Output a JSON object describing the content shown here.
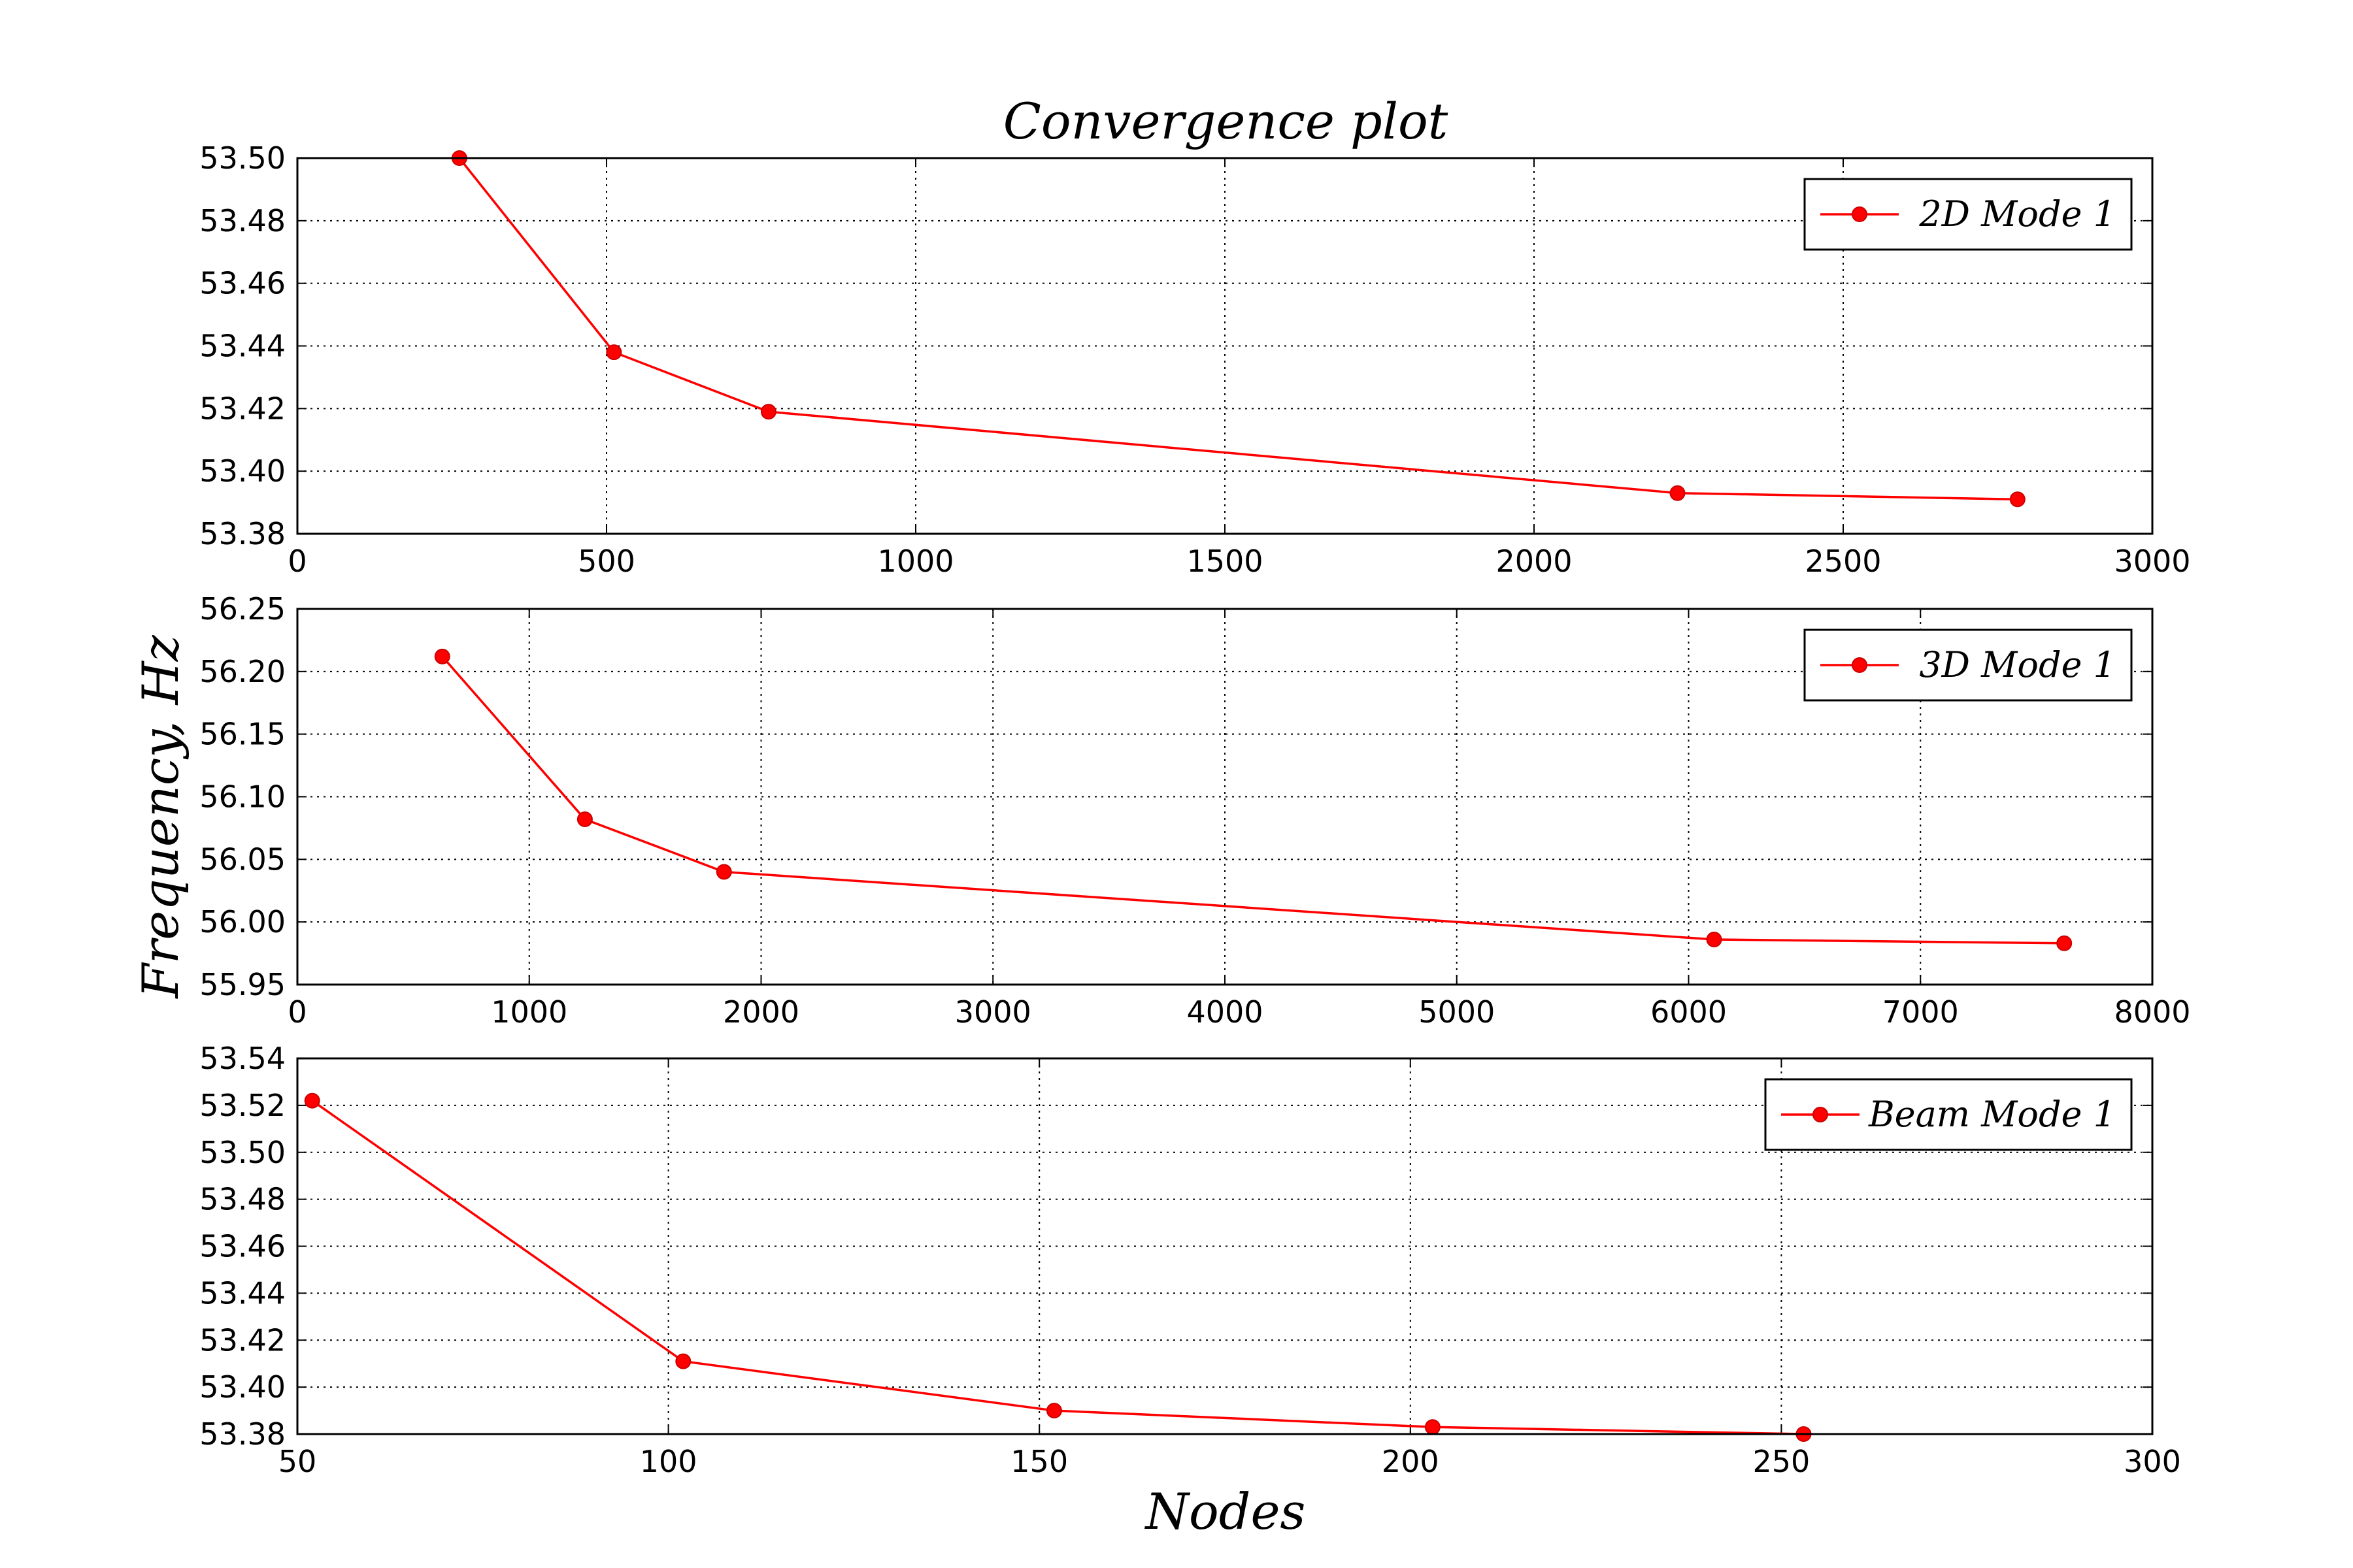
{
  "chart_data": {
    "title": "Convergence plot",
    "xlabel": "Nodes",
    "ylabel": "Frequency, Hz",
    "line_color": "#ff0000",
    "grid": true,
    "legend_position": "top-right",
    "panels": [
      {
        "type": "line",
        "series": [
          {
            "name": "2D Mode 1",
            "x": [
              262,
              512,
              762,
              2232,
              2782
            ],
            "y": [
              53.5,
              53.438,
              53.419,
              53.393,
              53.391
            ]
          }
        ],
        "xlim": [
          0,
          3000
        ],
        "ylim": [
          53.38,
          53.5
        ],
        "xticks": [
          0,
          500,
          1000,
          1500,
          2000,
          2500,
          3000
        ],
        "xtick_labels": [
          "0",
          "500",
          "1000",
          "1500",
          "2000",
          "2500",
          "3000"
        ],
        "yticks": [
          53.38,
          53.4,
          53.42,
          53.44,
          53.46,
          53.48,
          53.5
        ],
        "ytick_labels": [
          "53.38",
          "53.40",
          "53.42",
          "53.44",
          "53.46",
          "53.48",
          "53.50"
        ]
      },
      {
        "type": "line",
        "series": [
          {
            "name": "3D Mode 1",
            "x": [
              625,
              1240,
              1840,
              6110,
              7620
            ],
            "y": [
              56.212,
              56.082,
              56.04,
              55.986,
              55.983
            ]
          }
        ],
        "xlim": [
          0,
          8000
        ],
        "ylim": [
          55.95,
          56.25
        ],
        "xticks": [
          0,
          1000,
          2000,
          3000,
          4000,
          5000,
          6000,
          7000,
          8000
        ],
        "xtick_labels": [
          "0",
          "1000",
          "2000",
          "3000",
          "4000",
          "5000",
          "6000",
          "7000",
          "8000"
        ],
        "yticks": [
          55.95,
          56.0,
          56.05,
          56.1,
          56.15,
          56.2,
          56.25
        ],
        "ytick_labels": [
          "55.95",
          "56.00",
          "56.05",
          "56.10",
          "56.15",
          "56.20",
          "56.25"
        ]
      },
      {
        "type": "line",
        "series": [
          {
            "name": "Beam Mode 1",
            "x": [
              52,
              102,
              152,
              203,
              253
            ],
            "y": [
              53.522,
              53.411,
              53.39,
              53.383,
              53.38
            ]
          }
        ],
        "xlim": [
          50,
          300
        ],
        "ylim": [
          53.38,
          53.54
        ],
        "xticks": [
          50,
          100,
          150,
          200,
          250,
          300
        ],
        "xtick_labels": [
          "50",
          "100",
          "150",
          "200",
          "250",
          "300"
        ],
        "yticks": [
          53.38,
          53.4,
          53.42,
          53.44,
          53.46,
          53.48,
          53.5,
          53.52,
          53.54
        ],
        "ytick_labels": [
          "53.38",
          "53.40",
          "53.42",
          "53.44",
          "53.46",
          "53.48",
          "53.50",
          "53.52",
          "53.54"
        ]
      }
    ]
  }
}
